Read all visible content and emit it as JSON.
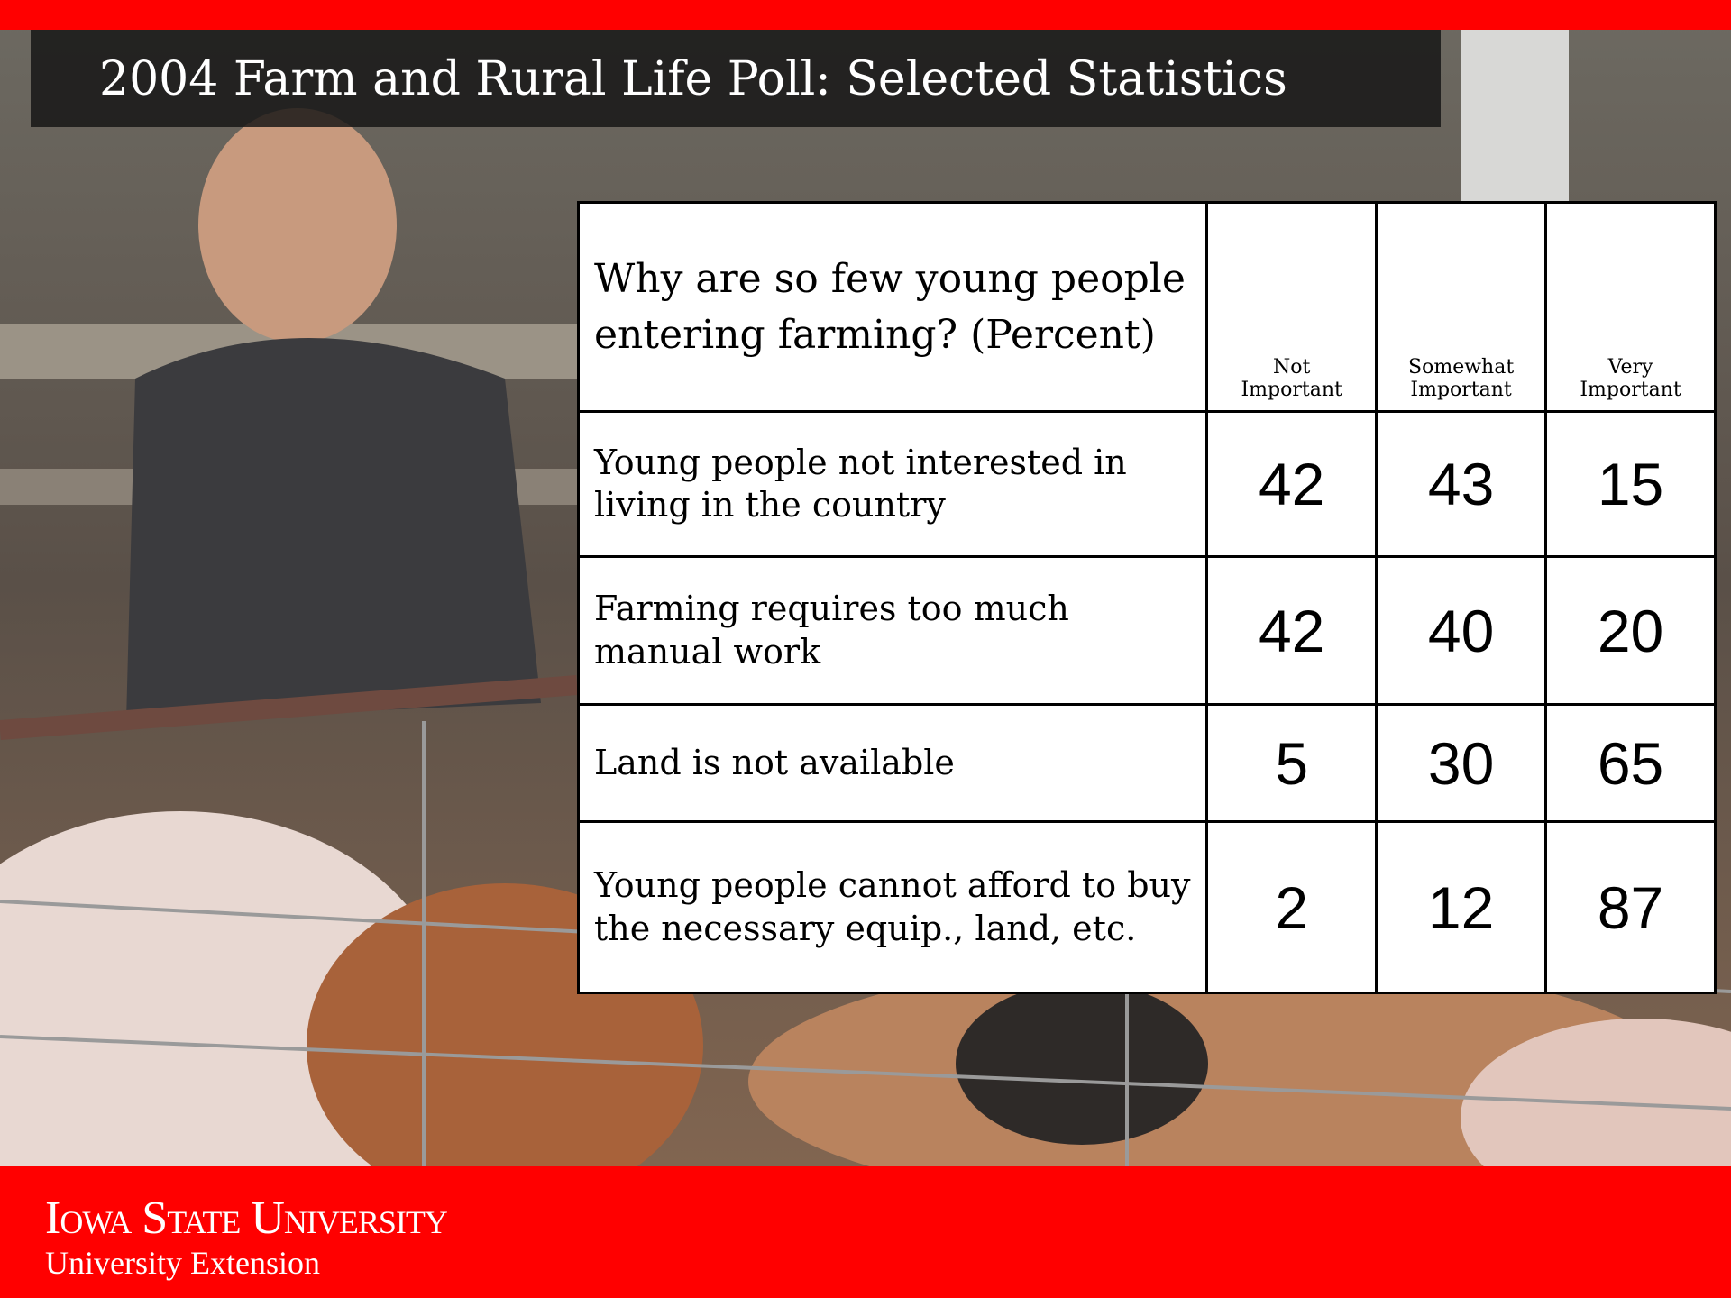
{
  "header": {
    "title": "2004 Farm and Rural Life Poll: Selected Statistics"
  },
  "table": {
    "header": [
      "Why are so few young people entering farming? (Percent)",
      "Not Important",
      "Somewhat Important",
      "Very Important"
    ],
    "rows": [
      [
        "Young people not interested in living in the country",
        42,
        43,
        15
      ],
      [
        "Farming requires too much manual work",
        42,
        40,
        20
      ],
      [
        "Land is not available",
        5,
        30,
        65
      ],
      [
        "Young people cannot afford to buy the necessary equip., land, etc.",
        2,
        12,
        87
      ]
    ]
  },
  "footer": {
    "logo": "Iowa State University",
    "subtitle": "University Extension"
  }
}
